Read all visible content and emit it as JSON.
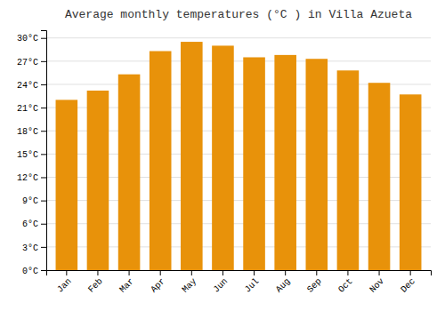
{
  "chart_data": {
    "type": "bar",
    "title": "Average monthly temperatures (°C ) in Villa Azueta",
    "categories": [
      "Jan",
      "Feb",
      "Mar",
      "Apr",
      "May",
      "Jun",
      "Jul",
      "Aug",
      "Sep",
      "Oct",
      "Nov",
      "Dec"
    ],
    "values": [
      22.0,
      23.2,
      25.3,
      28.3,
      29.5,
      29.0,
      27.5,
      27.8,
      27.3,
      25.8,
      24.2,
      22.7
    ],
    "color": "#E8920A",
    "ylim": [
      0,
      31
    ],
    "yticks": [
      {
        "value": 0,
        "label": "0°C"
      },
      {
        "value": 3,
        "label": "3°C"
      },
      {
        "value": 6,
        "label": "6°C"
      },
      {
        "value": 9,
        "label": "9°C"
      },
      {
        "value": 12,
        "label": "12°C"
      },
      {
        "value": 15,
        "label": "15°C"
      },
      {
        "value": 18,
        "label": "18°C"
      },
      {
        "value": 21,
        "label": "21°C"
      },
      {
        "value": 24,
        "label": "24°C"
      },
      {
        "value": 27,
        "label": "27°C"
      },
      {
        "value": 30,
        "label": "30°C"
      }
    ],
    "grid": true
  }
}
